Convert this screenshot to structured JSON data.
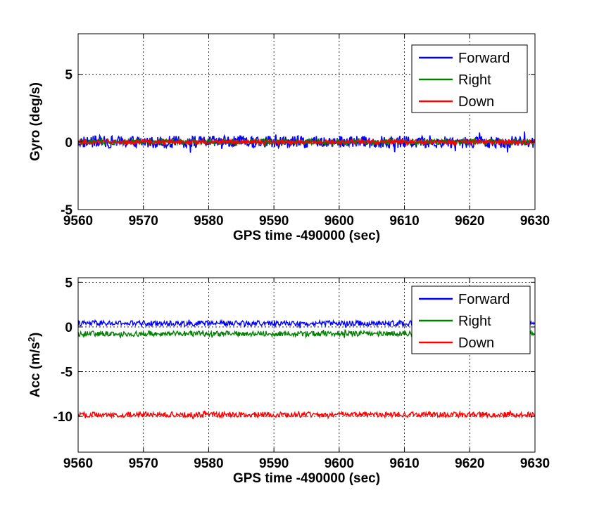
{
  "chart_data": [
    {
      "type": "line",
      "title": "",
      "xlabel": "GPS time -490000 (sec)",
      "ylabel": "Gyro (deg/s)",
      "xlim": [
        9560,
        9630
      ],
      "ylim": [
        -5,
        8
      ],
      "xticks": [
        "9560",
        "9570",
        "9580",
        "9590",
        "9600",
        "9610",
        "9620",
        "9630"
      ],
      "yticks": [
        "-5",
        "0",
        "5"
      ],
      "grid": true,
      "legend_position": "top-right",
      "series": [
        {
          "name": "Forward",
          "color": "#0000ff",
          "mean": 0.0,
          "noise_amplitude": 0.45
        },
        {
          "name": "Right",
          "color": "#008000",
          "mean": 0.0,
          "noise_amplitude": 0.2
        },
        {
          "name": "Down",
          "color": "#ff0000",
          "mean": 0.0,
          "noise_amplitude": 0.15
        }
      ]
    },
    {
      "type": "line",
      "title": "",
      "xlabel": "GPS time -490000 (sec)",
      "ylabel": "Acc (m/s",
      "ylabel_superscript": "2",
      "ylabel_suffix": ")",
      "xlim": [
        9560,
        9630
      ],
      "ylim": [
        -14,
        5.5
      ],
      "xticks": [
        "9560",
        "9570",
        "9580",
        "9590",
        "9600",
        "9610",
        "9620",
        "9630"
      ],
      "yticks": [
        "-10",
        "-5",
        "0",
        "5"
      ],
      "grid": true,
      "legend_position": "top-right",
      "series": [
        {
          "name": "Forward",
          "color": "#0000ff",
          "mean": 0.4,
          "noise_amplitude": 0.3
        },
        {
          "name": "Right",
          "color": "#008000",
          "mean": -0.75,
          "noise_amplitude": 0.3
        },
        {
          "name": "Down",
          "color": "#ff0000",
          "mean": -9.8,
          "noise_amplitude": 0.3
        }
      ]
    }
  ]
}
